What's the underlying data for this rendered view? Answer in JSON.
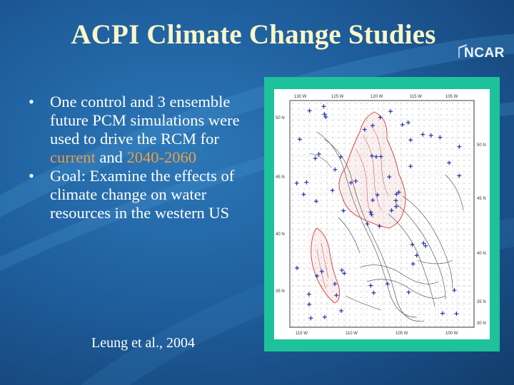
{
  "slide": {
    "title": "ACPI Climate Change Studies",
    "logo_text": "NCAR",
    "bullets": [
      {
        "parts": [
          "One control and 3 ensemble future PCM simulations were used to drive the RCM for ",
          "current",
          " and ",
          "2040-2060"
        ]
      },
      {
        "parts": [
          "Goal: Examine the effects of climate change on water resources in the western US"
        ]
      }
    ],
    "citation": "Leung et al., 2004"
  },
  "colors": {
    "background": "#1f5f9e",
    "title": "#fbf6c8",
    "highlight": "#e8a04a",
    "figure_frame": "#1ec29a"
  },
  "figure": {
    "top_labels": [
      "130 W",
      "125 W",
      "120 W",
      "115 W",
      "105 W"
    ],
    "left_labels": [
      "50 N",
      "45 N",
      "40 N",
      "35 N"
    ],
    "right_labels": [
      "50 N",
      "45 N",
      "40 N",
      "35 N",
      "30 N"
    ],
    "bottom_labels": [
      "115 W",
      "110 W",
      "105 W",
      "100 W"
    ]
  }
}
